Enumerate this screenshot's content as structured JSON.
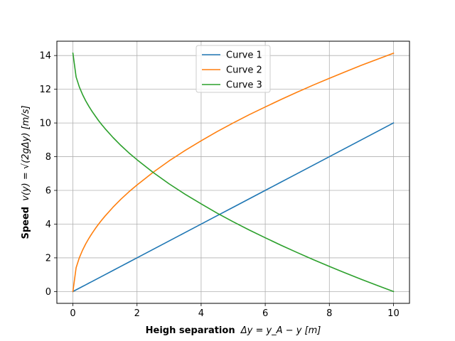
{
  "chart_data": {
    "type": "line",
    "title": "",
    "xlabel": {
      "bold": "Heigh separation",
      "math": "Δy = y_A − y [m]"
    },
    "ylabel": {
      "bold": "Speed",
      "math": "v(y) = √(2gΔy) [m/s]"
    },
    "xlim": [
      -0.5,
      10.5
    ],
    "ylim": [
      -0.7,
      14.85
    ],
    "xticks": [
      0,
      2,
      4,
      6,
      8,
      10
    ],
    "yticks": [
      0,
      2,
      4,
      6,
      8,
      10,
      12,
      14
    ],
    "grid": true,
    "legend_position": "upper center",
    "x": [
      0,
      0.1,
      0.2,
      0.3,
      0.4,
      0.5,
      0.6,
      0.7,
      0.8,
      0.9,
      1.0,
      1.25,
      1.5,
      1.75,
      2.0,
      2.5,
      3.0,
      3.5,
      4.0,
      4.5,
      5.0,
      5.5,
      6.0,
      6.5,
      7.0,
      7.5,
      8.0,
      8.5,
      9.0,
      9.5,
      10.0
    ],
    "series": [
      {
        "name": "Curve 1",
        "color": "#1f77b4",
        "values": [
          0,
          0.1,
          0.2,
          0.3,
          0.4,
          0.5,
          0.6,
          0.7,
          0.8,
          0.9,
          1.0,
          1.25,
          1.5,
          1.75,
          2.0,
          2.5,
          3.0,
          3.5,
          4.0,
          4.5,
          5.0,
          5.5,
          6.0,
          6.5,
          7.0,
          7.5,
          8.0,
          8.5,
          9.0,
          9.5,
          10.0
        ]
      },
      {
        "name": "Curve 2",
        "color": "#ff7f0e",
        "values": [
          0,
          1.41,
          2.0,
          2.45,
          2.83,
          3.16,
          3.46,
          3.74,
          4.0,
          4.24,
          4.47,
          5.0,
          5.48,
          5.92,
          6.32,
          7.07,
          7.75,
          8.37,
          8.94,
          9.49,
          10.0,
          10.49,
          10.95,
          11.4,
          11.83,
          12.25,
          12.65,
          13.04,
          13.42,
          13.78,
          14.14
        ]
      },
      {
        "name": "Curve 3",
        "color": "#2ca02c",
        "values": [
          14.14,
          12.73,
          12.14,
          11.69,
          11.31,
          10.98,
          10.68,
          10.41,
          10.14,
          9.9,
          9.67,
          9.14,
          8.66,
          8.22,
          7.82,
          7.07,
          6.39,
          5.77,
          5.2,
          4.65,
          4.14,
          3.65,
          3.19,
          2.74,
          2.31,
          1.89,
          1.49,
          1.1,
          0.72,
          0.36,
          0
        ]
      }
    ]
  }
}
